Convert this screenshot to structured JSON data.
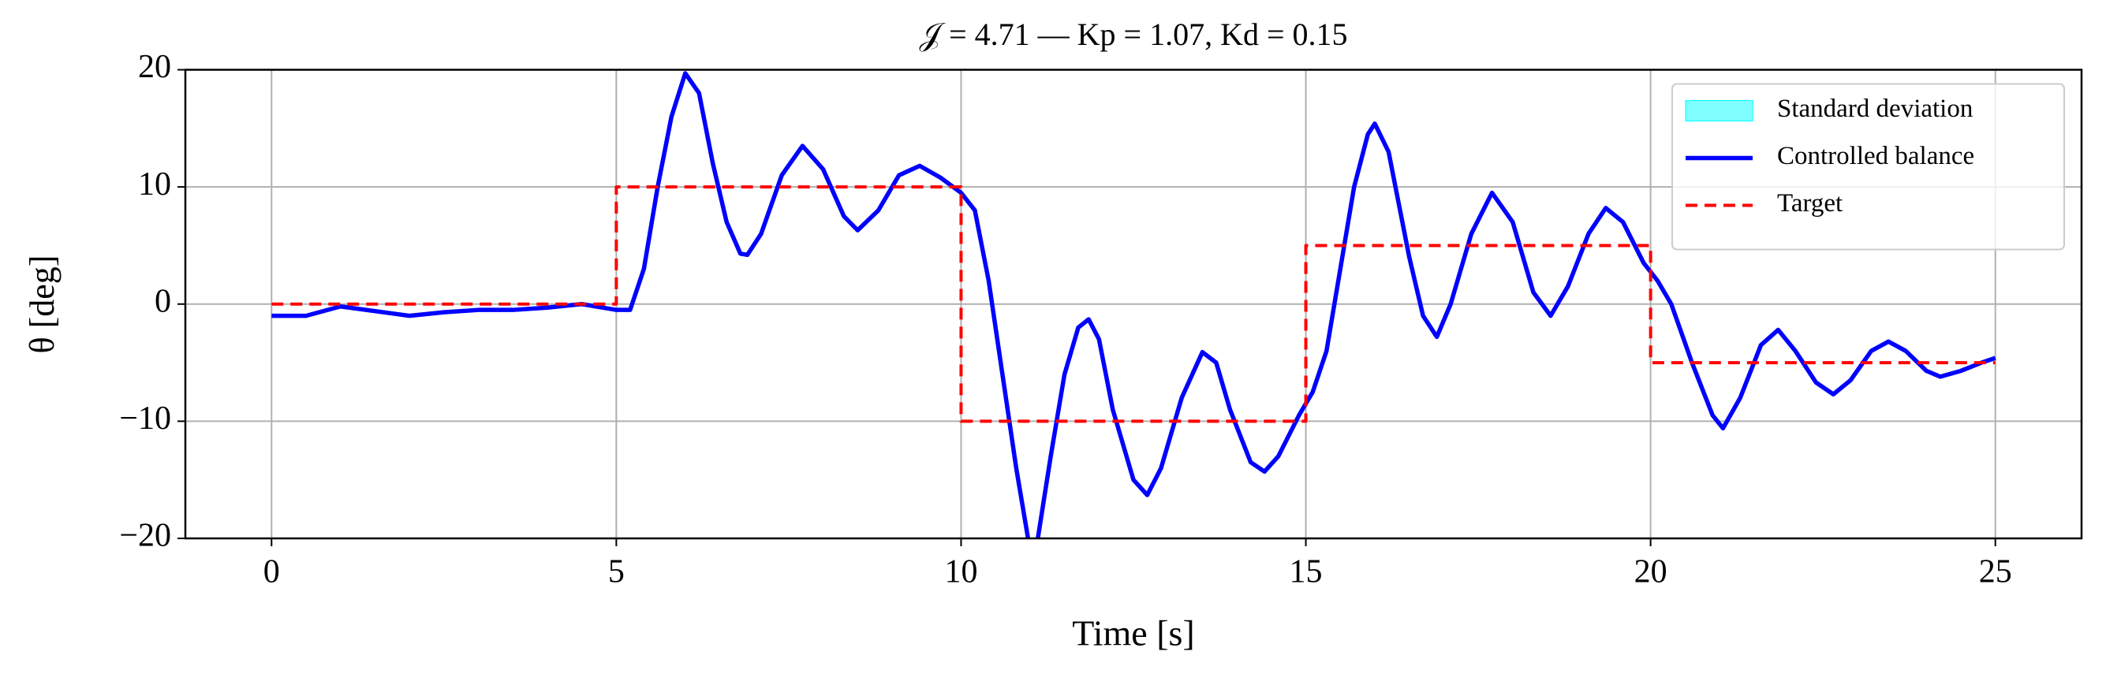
{
  "chart_data": {
    "type": "line",
    "title": "𝒥 = 4.71 — Kp = 1.07, Kd = 0.15",
    "x_label": "Time [s]",
    "y_label": "θ [deg]",
    "xlim": [
      -1.25,
      26.25
    ],
    "ylim": [
      -20,
      20
    ],
    "xticks": [
      0,
      5,
      10,
      15,
      20,
      25
    ],
    "yticks": [
      {
        "value": -20,
        "label": "−20"
      },
      {
        "value": -10,
        "label": "−10"
      },
      0,
      10,
      20
    ],
    "grid": true,
    "legend": "upper right",
    "series": [
      {
        "name": "Standard deviation",
        "color": "#00ffff",
        "style": "band"
      },
      {
        "name": "Controlled balance",
        "color": "#0000ff",
        "style": "solid",
        "x": [
          0,
          0.5,
          1,
          1.5,
          2,
          2.5,
          3,
          3.5,
          4,
          4.5,
          5,
          5.2,
          5.4,
          5.6,
          5.8,
          6.0,
          6.2,
          6.4,
          6.6,
          6.8,
          6.9,
          7.1,
          7.4,
          7.7,
          8.0,
          8.3,
          8.5,
          8.8,
          9.1,
          9.4,
          9.7,
          10.0,
          10.2,
          10.4,
          10.6,
          10.8,
          11.0,
          11.1,
          11.3,
          11.5,
          11.7,
          11.85,
          12.0,
          12.2,
          12.5,
          12.7,
          12.9,
          13.2,
          13.5,
          13.7,
          13.9,
          14.2,
          14.4,
          14.6,
          14.9,
          15.1,
          15.3,
          15.5,
          15.7,
          15.9,
          16.0,
          16.2,
          16.5,
          16.7,
          16.9,
          17.1,
          17.4,
          17.7,
          18.0,
          18.3,
          18.55,
          18.8,
          19.1,
          19.35,
          19.6,
          19.9,
          20.1,
          20.3,
          20.6,
          20.9,
          21.05,
          21.3,
          21.6,
          21.85,
          22.1,
          22.4,
          22.65,
          22.9,
          23.2,
          23.45,
          23.7,
          24.0,
          24.2,
          24.5,
          24.8,
          25
        ],
        "values": [
          -1,
          -1,
          -0.2,
          -0.6,
          -1,
          -0.7,
          -0.5,
          -0.5,
          -0.3,
          0,
          -0.5,
          -0.5,
          3,
          10,
          16,
          19.7,
          18,
          12,
          7,
          4.3,
          4.2,
          6,
          11,
          13.5,
          11.5,
          7.5,
          6.3,
          8,
          11,
          11.8,
          10.8,
          9.5,
          8,
          2,
          -6,
          -14,
          -21,
          -20.5,
          -13,
          -6,
          -2,
          -1.3,
          -3,
          -9,
          -15,
          -16.3,
          -14,
          -8,
          -4.1,
          -5,
          -9,
          -13.5,
          -14.3,
          -13,
          -9.5,
          -7.5,
          -4,
          3,
          10,
          14.5,
          15.4,
          13,
          4,
          -1,
          -2.8,
          0,
          6,
          9.5,
          7,
          1,
          -1,
          1.5,
          6,
          8.2,
          7,
          3.5,
          2,
          0,
          -5,
          -9.5,
          -10.6,
          -8,
          -3.5,
          -2.2,
          -4,
          -6.7,
          -7.7,
          -6.5,
          -4,
          -3.2,
          -4,
          -5.7,
          -6.2,
          -5.7,
          -5,
          -4.6
        ]
      },
      {
        "name": "Target",
        "color": "#ff0000",
        "style": "dashed",
        "x": [
          0,
          5,
          5,
          10,
          10,
          15,
          15,
          20,
          20,
          25
        ],
        "values": [
          0,
          0,
          10,
          10,
          -10,
          -10,
          5,
          5,
          -5,
          -5
        ]
      }
    ]
  }
}
